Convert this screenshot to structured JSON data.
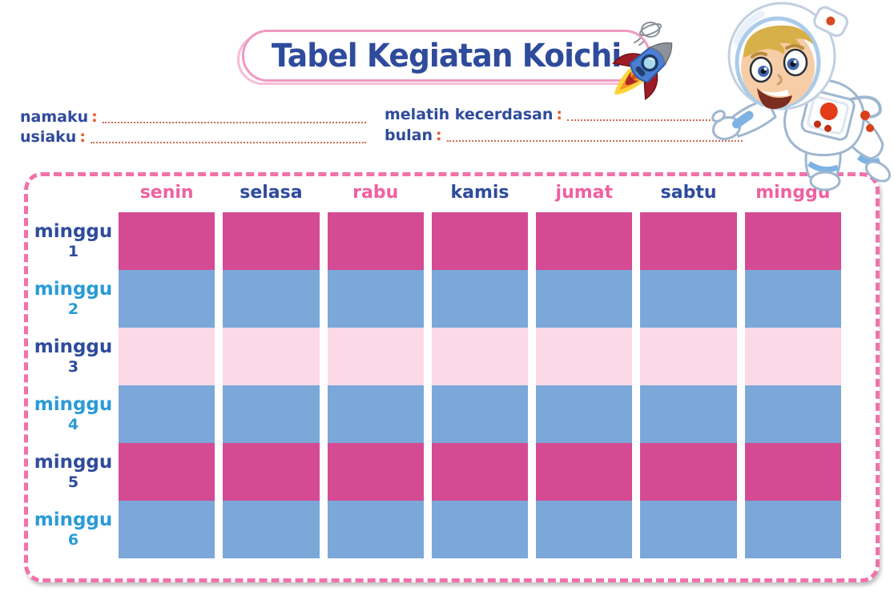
{
  "title": "Tabel Kegiatan Koichi",
  "form": {
    "fields": [
      {
        "id": "namaku",
        "label": "namaku",
        "colon": ":",
        "value": ""
      },
      {
        "id": "usiaku",
        "label": "usiaku",
        "colon": ":",
        "value": ""
      },
      {
        "id": "melatih-kecerdasan",
        "label": "melatih kecerdasan",
        "colon": ":",
        "value": ""
      },
      {
        "id": "bulan",
        "label": "bulan",
        "colon": ":",
        "value": ""
      }
    ]
  },
  "table": {
    "day_headers": [
      {
        "label": "senin",
        "color": "#f0609f"
      },
      {
        "label": "selasa",
        "color": "#2e4b9c"
      },
      {
        "label": "rabu",
        "color": "#f0609f"
      },
      {
        "label": "kamis",
        "color": "#2e4b9c"
      },
      {
        "label": "jumat",
        "color": "#f0609f"
      },
      {
        "label": "sabtu",
        "color": "#2e4b9c"
      },
      {
        "label": "minggu",
        "color": "#f0609f"
      }
    ],
    "week_rows": [
      {
        "label": "minggu",
        "number": "1",
        "label_color": "#2e4b9c",
        "band_color": "#d44b93"
      },
      {
        "label": "minggu",
        "number": "2",
        "label_color": "#299bd6",
        "band_color": "#7ba8d8"
      },
      {
        "label": "minggu",
        "number": "3",
        "label_color": "#2e4b9c",
        "band_color": "#fbd9e6"
      },
      {
        "label": "minggu",
        "number": "4",
        "label_color": "#299bd6",
        "band_color": "#7ba8d8"
      },
      {
        "label": "minggu",
        "number": "5",
        "label_color": "#2e4b9c",
        "band_color": "#d44b93"
      },
      {
        "label": "minggu",
        "number": "6",
        "label_color": "#299bd6",
        "band_color": "#7ba8d8"
      }
    ]
  },
  "icons": {
    "rocket": "rocket-icon",
    "satellite_doodle": "satellite-doodle-icon",
    "astronaut": "astronaut-kid-illustration"
  },
  "colors": {
    "title_text": "#2e4b9c",
    "banner_border": "#ef9ac2",
    "board_dash": "#f172ab",
    "field_label": "#2e4b9c",
    "colon": "#e8562c",
    "dotted_line": "#cf6a55",
    "band_magenta": "#d44b93",
    "band_blue": "#7ba8d8",
    "band_light_pink": "#fbd9e6"
  }
}
